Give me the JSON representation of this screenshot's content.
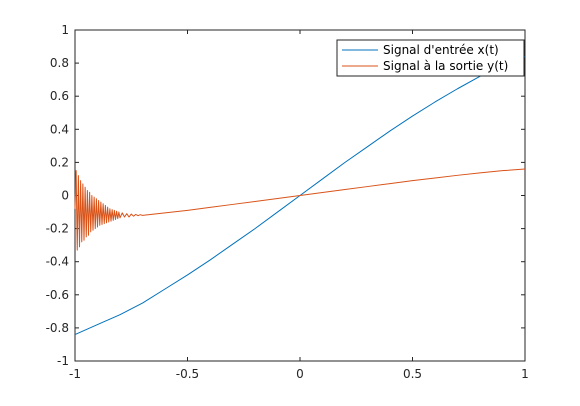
{
  "chart_data": {
    "type": "line",
    "xlim": [
      -1,
      1
    ],
    "ylim": [
      -1,
      1
    ],
    "x_ticks": [
      -1,
      -0.5,
      0,
      0.5,
      1
    ],
    "x_tick_labels": [
      "-1",
      "-0.5",
      "0",
      "0.5",
      "1"
    ],
    "y_ticks": [
      -1,
      -0.8,
      -0.6,
      -0.4,
      -0.2,
      0,
      0.2,
      0.4,
      0.6,
      0.8,
      1
    ],
    "y_tick_labels": [
      "-1",
      "-0.8",
      "-0.6",
      "-0.4",
      "-0.2",
      "0",
      "0.2",
      "0.4",
      "0.6",
      "0.8",
      "1"
    ],
    "grid": false,
    "legend_position": "top-right",
    "series": [
      {
        "name": "Signal d'entrée x(t)",
        "color": "#0072BD",
        "x": [
          -1,
          -0.9,
          -0.8,
          -0.7,
          -0.6,
          -0.5,
          -0.4,
          -0.3,
          -0.2,
          -0.1,
          0,
          0.1,
          0.2,
          0.3,
          0.4,
          0.5,
          0.6,
          0.7,
          0.8,
          0.9,
          1
        ],
        "y": [
          -0.84,
          -0.78,
          -0.72,
          -0.65,
          -0.565,
          -0.48,
          -0.39,
          -0.295,
          -0.2,
          -0.1,
          0,
          0.1,
          0.2,
          0.295,
          0.39,
          0.48,
          0.565,
          0.645,
          0.72,
          0.785,
          0.84
        ]
      },
      {
        "name": "Signal à la sortie y(t)",
        "color": "#D95319",
        "x": [
          -1,
          -0.995,
          -0.99,
          -0.985,
          -0.98,
          -0.975,
          -0.97,
          -0.965,
          -0.96,
          -0.955,
          -0.95,
          -0.945,
          -0.94,
          -0.935,
          -0.93,
          -0.925,
          -0.92,
          -0.915,
          -0.91,
          -0.905,
          -0.9,
          -0.895,
          -0.89,
          -0.885,
          -0.88,
          -0.875,
          -0.87,
          -0.865,
          -0.86,
          -0.855,
          -0.85,
          -0.845,
          -0.84,
          -0.835,
          -0.83,
          -0.825,
          -0.82,
          -0.815,
          -0.81,
          -0.805,
          -0.8,
          -0.79,
          -0.78,
          -0.77,
          -0.76,
          -0.75,
          -0.74,
          -0.73,
          -0.72,
          -0.71,
          -0.7,
          -0.6,
          -0.5,
          -0.4,
          -0.3,
          -0.2,
          -0.1,
          0,
          0.1,
          0.2,
          0.3,
          0.4,
          0.5,
          0.6,
          0.7,
          0.8,
          0.9,
          1
        ],
        "y": [
          -0.08,
          0.15,
          -0.33,
          0.12,
          -0.31,
          0.09,
          -0.28,
          0.07,
          -0.27,
          0.05,
          -0.25,
          0.03,
          -0.24,
          0.02,
          -0.22,
          0.0,
          -0.21,
          -0.01,
          -0.2,
          -0.02,
          -0.19,
          -0.03,
          -0.18,
          -0.04,
          -0.175,
          -0.05,
          -0.17,
          -0.06,
          -0.165,
          -0.07,
          -0.16,
          -0.08,
          -0.155,
          -0.085,
          -0.15,
          -0.09,
          -0.145,
          -0.095,
          -0.14,
          -0.1,
          -0.135,
          -0.105,
          -0.13,
          -0.11,
          -0.13,
          -0.112,
          -0.125,
          -0.114,
          -0.122,
          -0.116,
          -0.12,
          -0.105,
          -0.09,
          -0.072,
          -0.054,
          -0.036,
          -0.018,
          0,
          0.018,
          0.036,
          0.054,
          0.072,
          0.09,
          0.106,
          0.122,
          0.137,
          0.15,
          0.16
        ]
      }
    ]
  }
}
